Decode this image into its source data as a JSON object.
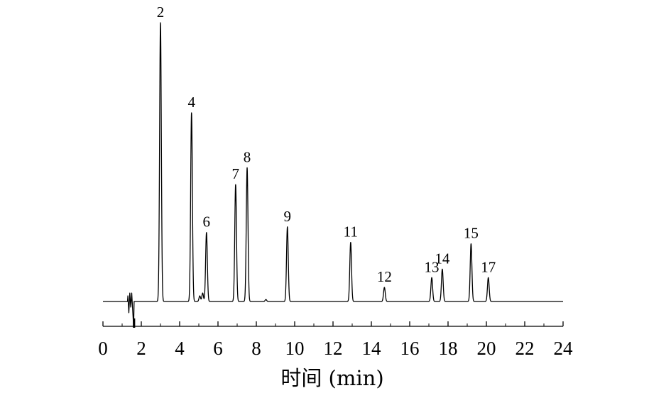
{
  "chart_data": {
    "type": "line",
    "xlabel": "时间 (min)",
    "ylabel": "",
    "xlim": [
      0,
      24
    ],
    "x_ticks": [
      0,
      2,
      4,
      6,
      8,
      10,
      12,
      14,
      16,
      18,
      20,
      22,
      24
    ],
    "y_axis_shown": false,
    "grid": false,
    "baseline": 0,
    "ylim": [
      -0.1,
      1.0
    ],
    "solvent_disturbance": [
      {
        "x": 1.3,
        "y": 0.02
      },
      {
        "x": 1.35,
        "y": -0.04
      },
      {
        "x": 1.4,
        "y": 0.03
      },
      {
        "x": 1.45,
        "y": -0.02
      },
      {
        "x": 1.5,
        "y": 0.03
      },
      {
        "x": 1.55,
        "y": -0.03
      },
      {
        "x": 1.6,
        "y": -0.09
      }
    ],
    "peaks": [
      {
        "label": "2",
        "time": 3.0,
        "height": 0.99
      },
      {
        "label": "4",
        "time": 4.62,
        "height": 0.67
      },
      {
        "label": "",
        "time": 5.05,
        "height": 0.02
      },
      {
        "label": "",
        "time": 5.2,
        "height": 0.03
      },
      {
        "label": "6",
        "time": 5.4,
        "height": 0.245
      },
      {
        "label": "7",
        "time": 6.92,
        "height": 0.415
      },
      {
        "label": "8",
        "time": 7.52,
        "height": 0.475
      },
      {
        "label": "",
        "time": 8.5,
        "height": 0.007
      },
      {
        "label": "9",
        "time": 9.62,
        "height": 0.265
      },
      {
        "label": "11",
        "time": 12.92,
        "height": 0.21
      },
      {
        "label": "12",
        "time": 14.68,
        "height": 0.05
      },
      {
        "label": "13",
        "time": 17.15,
        "height": 0.085
      },
      {
        "label": "14",
        "time": 17.7,
        "height": 0.115
      },
      {
        "label": "15",
        "time": 19.2,
        "height": 0.205
      },
      {
        "label": "17",
        "time": 20.1,
        "height": 0.085
      }
    ]
  }
}
